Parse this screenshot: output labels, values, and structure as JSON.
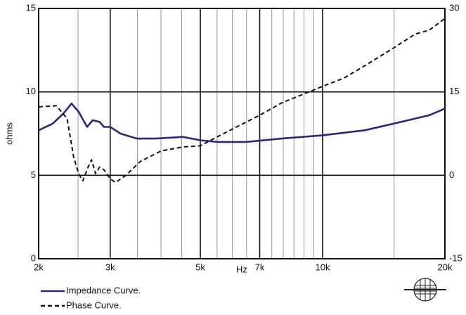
{
  "chart_data": {
    "type": "line",
    "xlabel": "Hz",
    "ylabel": "ohms",
    "xscale": "log",
    "xlim": [
      2000,
      20000
    ],
    "xticks": [
      {
        "value": 2000,
        "label": "2k"
      },
      {
        "value": 3000,
        "label": "3k"
      },
      {
        "value": 5000,
        "label": "5k"
      },
      {
        "value": 7000,
        "label": "7k"
      },
      {
        "value": 10000,
        "label": "10k"
      },
      {
        "value": 20000,
        "label": "20k"
      }
    ],
    "x_minor_ticks": [
      2500,
      3500,
      4000,
      4500,
      5500,
      6000,
      6500,
      7500,
      8000,
      8500,
      9000,
      9500,
      15000
    ],
    "ylim": [
      0,
      15
    ],
    "yticks": [
      0,
      5,
      10,
      15
    ],
    "y2lim": [
      -15,
      30
    ],
    "y2ticks": [
      -15,
      0,
      15,
      30
    ],
    "grid": true,
    "series": [
      {
        "name": "Impedance Curve.",
        "color": "#2b2a7a",
        "dash": false,
        "x": [
          2000,
          2166,
          2300,
          2410,
          2510,
          2632,
          2717,
          2826,
          2896,
          3000,
          3180,
          3490,
          3860,
          4530,
          5000,
          5530,
          6470,
          7920,
          10000,
          12700,
          14960,
          16900,
          18300,
          20000
        ],
        "values": [
          7.7,
          8.1,
          8.7,
          9.3,
          8.8,
          7.9,
          8.3,
          8.2,
          7.9,
          7.9,
          7.5,
          7.2,
          7.2,
          7.3,
          7.1,
          7.0,
          7.0,
          7.2,
          7.4,
          7.7,
          8.1,
          8.4,
          8.6,
          9.0
        ]
      },
      {
        "name": "Phase Curve.",
        "color": "#111111",
        "dash": true,
        "axis": "y2",
        "x": [
          2000,
          2210,
          2350,
          2440,
          2510,
          2570,
          2640,
          2700,
          2760,
          2825,
          2896,
          3000,
          3090,
          3280,
          3560,
          4010,
          4530,
          5000,
          5530,
          6220,
          7000,
          7920,
          10000,
          11300,
          12700,
          14960,
          16900,
          18300,
          20000
        ],
        "values": [
          12.3,
          12.5,
          10.2,
          3.2,
          0.3,
          -1.0,
          1.3,
          2.8,
          0.3,
          1.5,
          1.0,
          -0.6,
          -1.3,
          0,
          2.5,
          4.4,
          5.1,
          5.3,
          7.0,
          8.9,
          10.8,
          13.0,
          16.0,
          17.5,
          19.7,
          22.9,
          25.4,
          26.1,
          28.2
        ]
      }
    ]
  }
}
